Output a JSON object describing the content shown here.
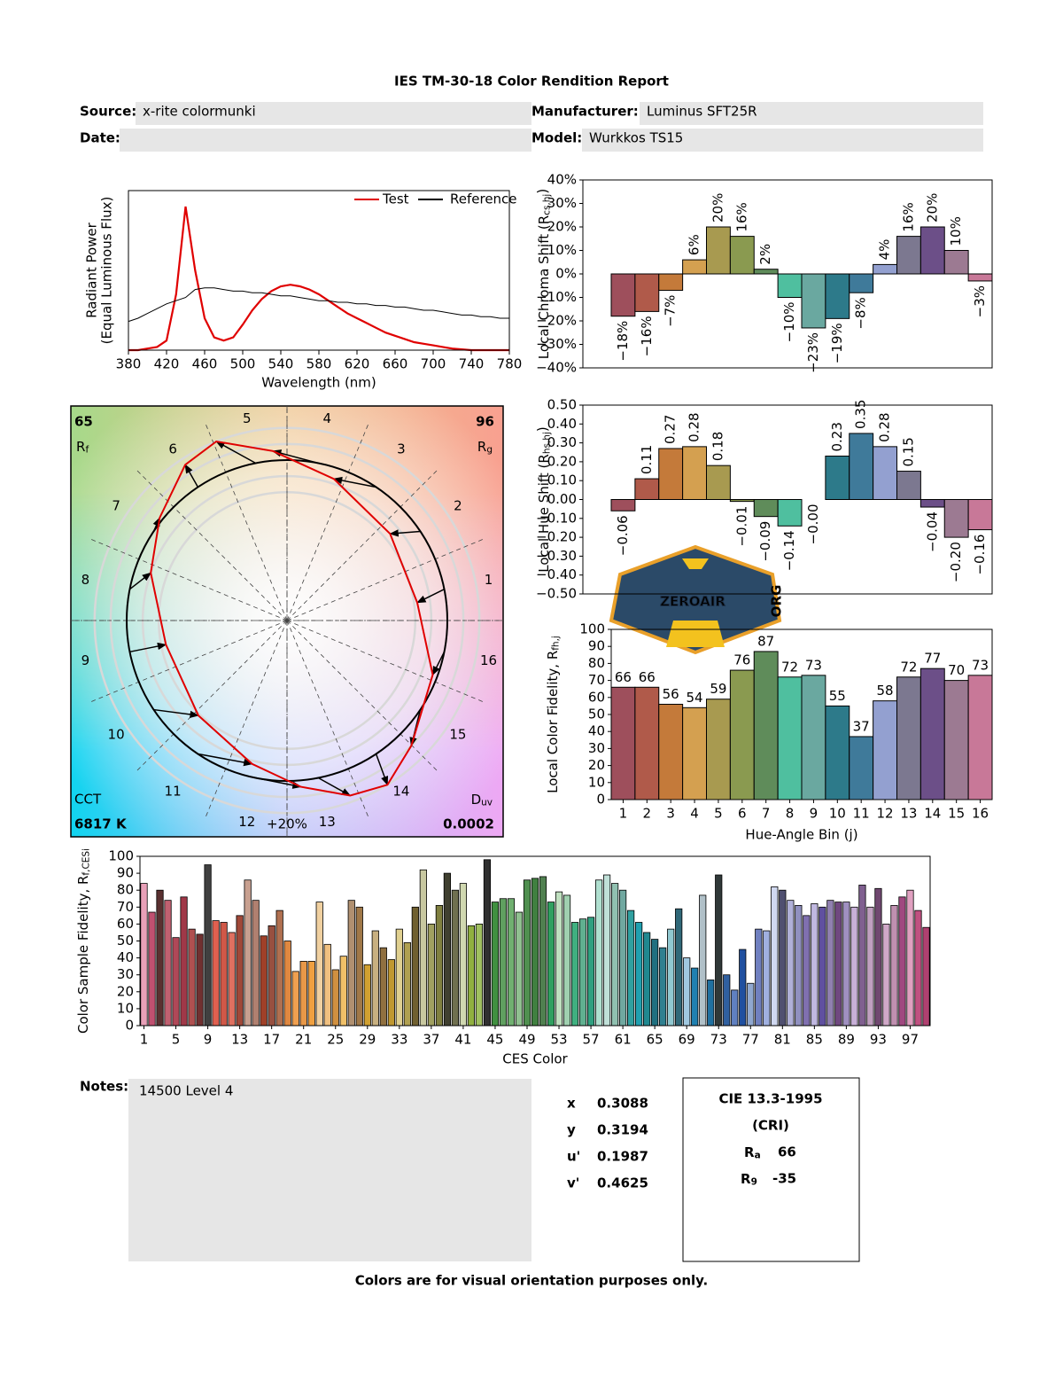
{
  "header": {
    "title": "IES TM-30-18 Color Rendition Report",
    "fields": [
      {
        "label": "Source:",
        "value": "x-rite colormunki"
      },
      {
        "label": "Manufacturer:",
        "value": "Luminus SFT25R"
      },
      {
        "label": "Date:"
      },
      {
        "label": "Model:",
        "value": "Wurkkos TS15"
      }
    ]
  },
  "chart_data": [
    {
      "type": "line",
      "xlabel": "Wavelength (nm)",
      "ylabel": "Radiant Power",
      "ylabel_note": "(Equal Luminous Flux)",
      "x": [
        380,
        390,
        400,
        410,
        420,
        430,
        440,
        450,
        460,
        470,
        480,
        490,
        500,
        510,
        520,
        530,
        540,
        550,
        560,
        570,
        580,
        590,
        600,
        610,
        620,
        630,
        640,
        650,
        660,
        670,
        680,
        690,
        700,
        710,
        720,
        730,
        740,
        750,
        760,
        770,
        780
      ],
      "series": [
        {
          "name": "Test",
          "color": "#e00000",
          "values": [
            0,
            0,
            0.01,
            0.02,
            0.06,
            0.35,
            0.9,
            0.5,
            0.2,
            0.08,
            0.06,
            0.08,
            0.16,
            0.25,
            0.32,
            0.37,
            0.4,
            0.41,
            0.4,
            0.38,
            0.35,
            0.31,
            0.27,
            0.23,
            0.2,
            0.17,
            0.14,
            0.11,
            0.09,
            0.07,
            0.05,
            0.04,
            0.03,
            0.02,
            0.01,
            0.005,
            0,
            0,
            0,
            0,
            0
          ]
        },
        {
          "name": "Reference",
          "color": "#000000",
          "values": [
            0.18,
            0.2,
            0.23,
            0.26,
            0.29,
            0.31,
            0.33,
            0.38,
            0.39,
            0.39,
            0.38,
            0.37,
            0.37,
            0.36,
            0.36,
            0.35,
            0.34,
            0.34,
            0.33,
            0.32,
            0.31,
            0.31,
            0.3,
            0.3,
            0.29,
            0.29,
            0.28,
            0.28,
            0.27,
            0.27,
            0.26,
            0.25,
            0.25,
            0.24,
            0.23,
            0.22,
            0.22,
            0.21,
            0.21,
            0.2,
            0.2
          ]
        }
      ],
      "xlim": [
        380,
        780
      ],
      "xticks": [
        380,
        420,
        460,
        500,
        540,
        580,
        620,
        660,
        700,
        740,
        780
      ],
      "ylim": [
        0,
        1
      ]
    },
    {
      "type": "bar",
      "ylabel": "Local Chroma Shift (R",
      "ylabel_sub": "cs,hj",
      "ylabel_end": ")",
      "values": [
        -18,
        -16,
        -7,
        6,
        20,
        16,
        2,
        -10,
        -23,
        -19,
        -8,
        4,
        16,
        20,
        10,
        -3
      ],
      "value_labels": [
        "−18%",
        "−16%",
        "−7%",
        "6%",
        "20%",
        "16%",
        "2%",
        "−10%",
        "−23%",
        "−19%",
        "−8%",
        "4%",
        "16%",
        "20%",
        "10%",
        "−3%"
      ],
      "colors": [
        "#9e4f5c",
        "#b05a4a",
        "#c47a3a",
        "#d4a050",
        "#a89a50",
        "#8a9a50",
        "#5f8c5a",
        "#4fbf9f",
        "#6aa8a0",
        "#2d7a8a",
        "#3f7a9a",
        "#93a0d0",
        "#7c7890",
        "#6c4f88",
        "#9c7a92",
        "#c87898"
      ],
      "ylim": [
        -40,
        40
      ],
      "yticks": [
        {
          "value": -40,
          "label": "−40%"
        },
        {
          "value": -30,
          "label": "−30%"
        },
        {
          "value": -20,
          "label": "−20%"
        },
        {
          "value": -10,
          "label": "−10%"
        },
        {
          "value": 0,
          "label": "0%"
        },
        {
          "value": 10,
          "label": "10%"
        },
        {
          "value": 20,
          "label": "20%"
        },
        {
          "value": 30,
          "label": "30%"
        },
        {
          "value": 40,
          "label": "40%"
        }
      ]
    },
    {
      "type": "bar",
      "ylabel": "Local Hue Shift (R",
      "ylabel_sub": "hs,hj",
      "ylabel_end": ")",
      "values": [
        -0.06,
        0.11,
        0.27,
        0.28,
        0.18,
        -0.01,
        -0.09,
        -0.14,
        0,
        0.23,
        0.35,
        0.28,
        0.15,
        -0.04,
        -0.2,
        -0.16
      ],
      "value_labels": [
        "−0.06",
        "0.11",
        "0.27",
        "0.28",
        "0.18",
        "−0.01",
        "−0.09",
        "−0.14",
        "−0.00",
        "0.23",
        "0.35",
        "0.28",
        "0.15",
        "−0.04",
        "−0.20",
        "−0.16"
      ],
      "colors": [
        "#9e4f5c",
        "#b05a4a",
        "#c47a3a",
        "#d4a050",
        "#a89a50",
        "#8a9a50",
        "#5f8c5a",
        "#4fbf9f",
        "#6aa8a0",
        "#2d7a8a",
        "#3f7a9a",
        "#93a0d0",
        "#7c7890",
        "#6c4f88",
        "#9c7a92",
        "#c87898"
      ],
      "ylim": [
        -0.5,
        0.5
      ],
      "yticks": [
        {
          "value": -0.5,
          "label": "−0.50"
        },
        {
          "value": -0.4,
          "label": "−0.40"
        },
        {
          "value": -0.3,
          "label": "−0.30"
        },
        {
          "value": -0.2,
          "label": "−0.20"
        },
        {
          "value": -0.1,
          "label": "−0.10"
        },
        {
          "value": 0,
          "label": "0.00"
        },
        {
          "value": 0.1,
          "label": "0.10"
        },
        {
          "value": 0.2,
          "label": "0.20"
        },
        {
          "value": 0.3,
          "label": "0.30"
        },
        {
          "value": 0.4,
          "label": "0.40"
        },
        {
          "value": 0.5,
          "label": "0.50"
        }
      ]
    },
    {
      "type": "bar",
      "ylabel": "Local Color Fidelity, R",
      "ylabel_sub": "fh,j",
      "xlabel": "Hue-Angle Bin (j)",
      "show_values": true,
      "categories": [
        1,
        2,
        3,
        4,
        5,
        6,
        7,
        8,
        9,
        10,
        11,
        12,
        13,
        14,
        15,
        16
      ],
      "values": [
        66,
        66,
        56,
        54,
        59,
        76,
        87,
        72,
        73,
        55,
        37,
        58,
        72,
        77,
        70,
        73
      ],
      "colors": [
        "#9e4f5c",
        "#b05a4a",
        "#c47a3a",
        "#d4a050",
        "#a89a50",
        "#8a9a50",
        "#5f8c5a",
        "#4fbf9f",
        "#6aa8a0",
        "#2d7a8a",
        "#3f7a9a",
        "#93a0d0",
        "#7c7890",
        "#6c4f88",
        "#9c7a92",
        "#c87898"
      ],
      "ylim": [
        0,
        100
      ],
      "yticks": [
        0,
        10,
        20,
        30,
        40,
        50,
        60,
        70,
        80,
        90,
        100
      ]
    },
    {
      "type": "vector",
      "rf": 65,
      "rf_symbol": "R",
      "rf_sub": "f",
      "rg": 96,
      "rg_symbol": "R",
      "rg_sub": "g",
      "cct_label": "CCT",
      "cct": "6817 K",
      "duv_symbol": "D",
      "duv_sub": "uv",
      "duv": 0.0002,
      "bin_labels": [
        1,
        2,
        3,
        4,
        5,
        6,
        7,
        8,
        9,
        10,
        11,
        12,
        13,
        14,
        15,
        16
      ],
      "ring_label": "+20%"
    },
    {
      "type": "bar",
      "ylabel": "Color Sample Fidelity, R",
      "ylabel_sub": "f,CESi",
      "xlabel": "CES Color",
      "categories": [
        1,
        null,
        null,
        null,
        5,
        null,
        null,
        null,
        9,
        null,
        null,
        null,
        13,
        null,
        null,
        null,
        17,
        null,
        null,
        null,
        21,
        null,
        null,
        null,
        25,
        null,
        null,
        null,
        29,
        null,
        null,
        null,
        33,
        null,
        null,
        null,
        37,
        null,
        null,
        null,
        41,
        null,
        null,
        null,
        45,
        null,
        null,
        null,
        49,
        null,
        null,
        null,
        53,
        null,
        null,
        null,
        57,
        null,
        null,
        null,
        61,
        null,
        null,
        null,
        65,
        null,
        null,
        null,
        69,
        null,
        null,
        null,
        73,
        null,
        null,
        null,
        77,
        null,
        null,
        null,
        81,
        null,
        null,
        null,
        85,
        null,
        null,
        null,
        89,
        null,
        null,
        null,
        93,
        null,
        null,
        null,
        97,
        null,
        null
      ],
      "values": [
        84,
        67,
        80,
        74,
        52,
        76,
        57,
        54,
        95,
        62,
        61,
        55,
        65,
        86,
        74,
        53,
        59,
        68,
        50,
        32,
        38,
        38,
        73,
        48,
        33,
        41,
        74,
        70,
        36,
        56,
        46,
        39,
        57,
        49,
        70,
        92,
        60,
        71,
        90,
        80,
        84,
        59,
        60,
        98,
        73,
        75,
        75,
        67,
        86,
        87,
        88,
        73,
        79,
        77,
        61,
        63,
        64,
        86,
        89,
        84,
        80,
        68,
        61,
        55,
        51,
        46,
        57,
        69,
        40,
        34,
        77,
        27,
        89,
        30,
        21,
        45,
        25,
        57,
        56,
        82,
        80,
        74,
        71,
        65,
        72,
        70,
        74,
        73,
        73,
        70,
        83,
        70,
        81,
        60,
        71,
        76,
        80,
        68,
        58
      ],
      "colors": [
        "#e8a0b8",
        "#c05070",
        "#5a3030",
        "#c06070",
        "#b04858",
        "#a03848",
        "#b05050",
        "#703030",
        "#404040",
        "#e06050",
        "#d05848",
        "#e07060",
        "#a04838",
        "#c8a090",
        "#b08070",
        "#a04028",
        "#985040",
        "#b07050",
        "#e08840",
        "#f0a050",
        "#e89848",
        "#f0a040",
        "#f0d0a0",
        "#f0c080",
        "#d09040",
        "#f0c068",
        "#b09070",
        "#a07848",
        "#d0a030",
        "#c8b080",
        "#907040",
        "#c09830",
        "#e0d090",
        "#b0a050",
        "#706030",
        "#c8c8a0",
        "#a0a060",
        "#808040",
        "#404030",
        "#707050",
        "#d0d8b0",
        "#90b040",
        "#a0c060",
        "#303030",
        "#409040",
        "#60a060",
        "#70b070",
        "#90c090",
        "#509050",
        "#408040",
        "#508050",
        "#30a060",
        "#c0e0c0",
        "#a0d0b0",
        "#40b080",
        "#60b090",
        "#30a080",
        "#b0e0d0",
        "#c0e0d8",
        "#90c0b0",
        "#70a8a0",
        "#30a0a0",
        "#20a0b0",
        "#208890",
        "#207080",
        "#308090",
        "#90c8d0",
        "#306878",
        "#a0c8e0",
        "#2080b0",
        "#b0c0c8",
        "#2070a0",
        "#303838",
        "#3060a0",
        "#6080c0",
        "#2050a0",
        "#90a8d0",
        "#7080c0",
        "#a0b0e0",
        "#d0d8f0",
        "#505070",
        "#b0b0d8",
        "#9090c0",
        "#8070b0",
        "#c0b8e0",
        "#6050a0",
        "#9080b0",
        "#704880",
        "#a090c0",
        "#c8b0d8",
        "#806090",
        "#c0a0c0",
        "#704870",
        "#d0a8c8",
        "#c090b0",
        "#a04880",
        "#e0a0c0",
        "#c05080",
        "#b04070"
      ],
      "ylim": [
        0,
        100
      ],
      "yticks": [
        0,
        10,
        20,
        30,
        40,
        50,
        60,
        70,
        80,
        90,
        100
      ]
    }
  ],
  "watermark": {
    "text": "ZEROAIR",
    "sub": "ORG"
  },
  "notes": {
    "label": "Notes:",
    "text": "14500 Level 4"
  },
  "chromaticity": [
    {
      "label": "x",
      "value": 0.3088
    },
    {
      "label": "y",
      "value": 0.3194
    },
    {
      "label": "u'",
      "value": 0.1987
    },
    {
      "label": "v'",
      "value": 0.4625
    }
  ],
  "cri": {
    "title": "CIE 13.3-1995",
    "subtitle": "(CRI)",
    "ra_symbol": "R",
    "ra_sub": "a",
    "ra": 66,
    "r9_symbol": "R",
    "r9_sub": "9",
    "r9": -35
  },
  "footer": "Colors are for visual orientation purposes only."
}
